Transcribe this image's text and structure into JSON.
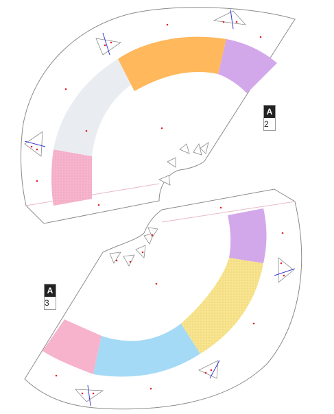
{
  "pieces": [
    {
      "id": "A",
      "number": "2",
      "bands": [
        {
          "name": "pink",
          "color": "#f7b3cc",
          "pattern": "dots"
        },
        {
          "name": "light-gray",
          "color": "#e9edf1",
          "pattern": "none"
        },
        {
          "name": "orange",
          "color": "#ffb85c",
          "pattern": "none"
        },
        {
          "name": "purple",
          "color": "#d3a8ea",
          "pattern": "none"
        }
      ]
    },
    {
      "id": "A",
      "number": "3",
      "bands": [
        {
          "name": "pink",
          "color": "#f7b3cc",
          "pattern": "none"
        },
        {
          "name": "light-blue",
          "color": "#a4daf5",
          "pattern": "none"
        },
        {
          "name": "yellow",
          "color": "#f8e48e",
          "pattern": "dots"
        },
        {
          "name": "purple",
          "color": "#d3a8ea",
          "pattern": "none"
        }
      ]
    }
  ],
  "colors": {
    "outline": "#8a8a8a",
    "hinge_line": "#e8b8c6",
    "dot": "#e0202a",
    "fold_line": "#3a3ad0"
  }
}
